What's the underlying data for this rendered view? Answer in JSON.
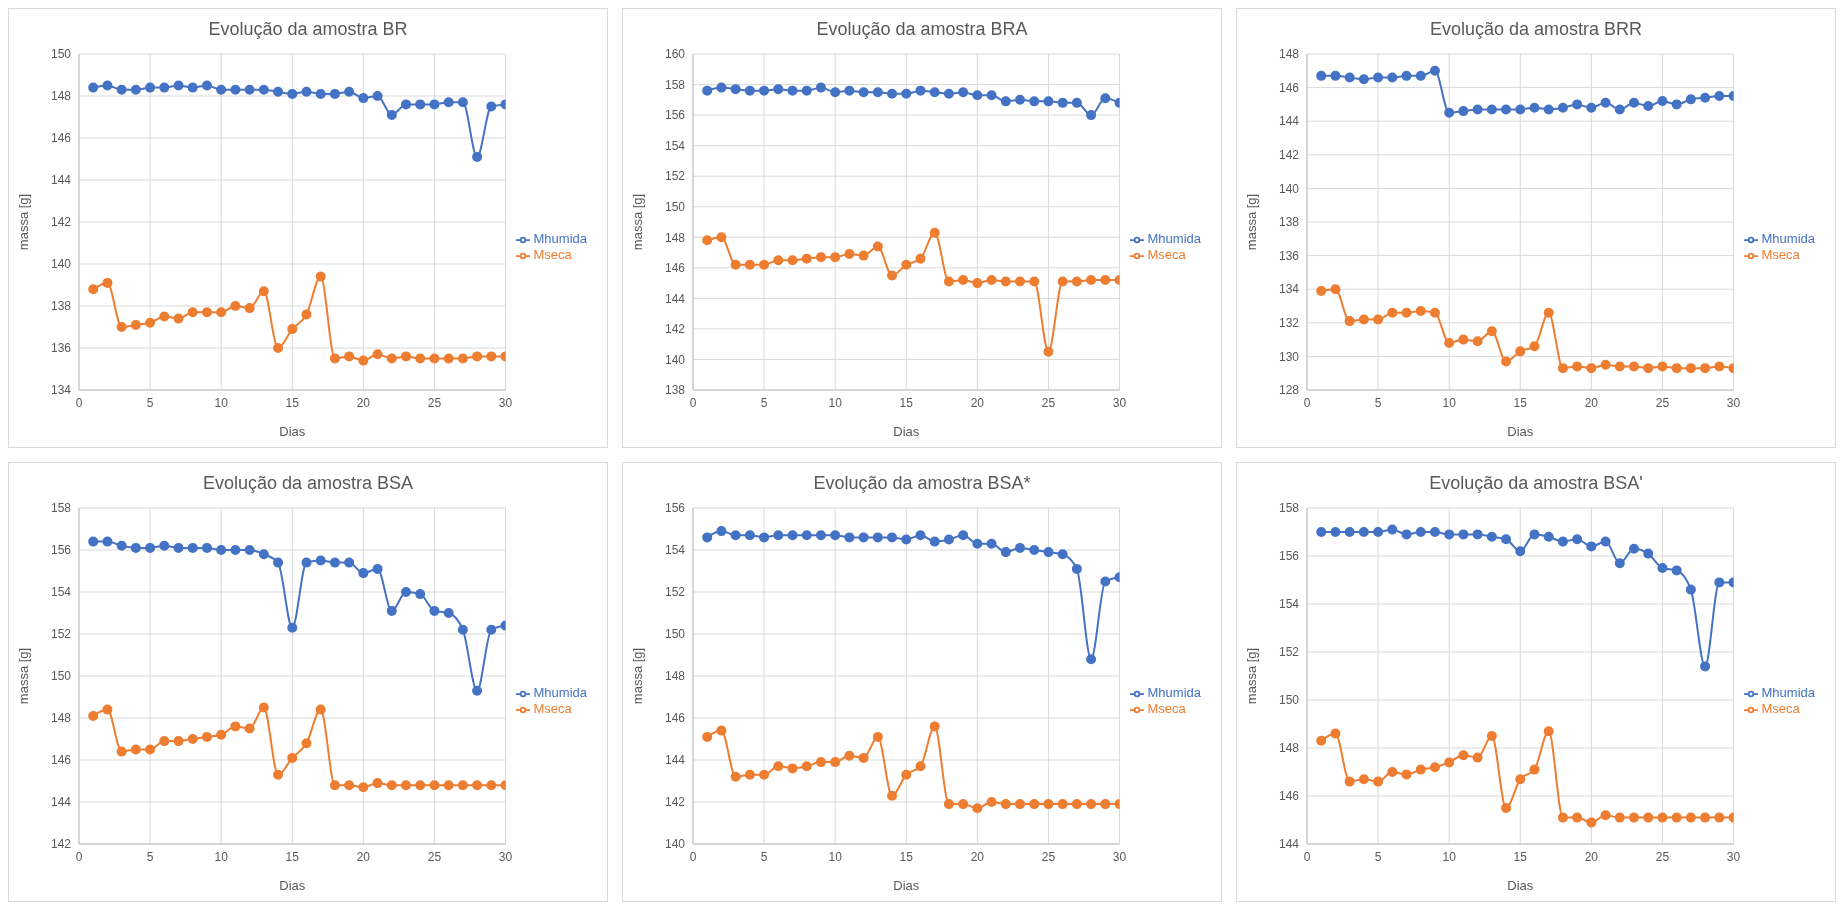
{
  "chart_data": [
    {
      "type": "line",
      "title": "Evolução da amostra BR",
      "xlabel": "Dias",
      "ylabel": "massa [g]",
      "x": [
        1,
        2,
        3,
        4,
        5,
        6,
        7,
        8,
        9,
        10,
        11,
        12,
        13,
        14,
        15,
        16,
        17,
        18,
        19,
        20,
        21,
        22,
        23,
        24,
        25,
        26,
        27,
        28,
        29,
        30
      ],
      "xlim": [
        0,
        30
      ],
      "xticks": [
        0,
        5,
        10,
        15,
        20,
        25,
        30
      ],
      "ylim": [
        134,
        150
      ],
      "yticks": [
        134,
        136,
        138,
        140,
        142,
        144,
        146,
        148,
        150
      ],
      "grid": true,
      "legend": "right",
      "marker": "circle",
      "series": [
        {
          "name": "Mhumida",
          "color": "#4472c4",
          "values": [
            148.4,
            148.5,
            148.3,
            148.3,
            148.4,
            148.4,
            148.5,
            148.4,
            148.5,
            148.3,
            148.3,
            148.3,
            148.3,
            148.2,
            148.1,
            148.2,
            148.1,
            148.1,
            148.2,
            147.9,
            148.0,
            147.1,
            147.6,
            147.6,
            147.6,
            147.7,
            147.7,
            145.1,
            147.5,
            147.6
          ]
        },
        {
          "name": "Mseca",
          "color": "#ed7d31",
          "values": [
            138.8,
            139.1,
            137.0,
            137.1,
            137.2,
            137.5,
            137.4,
            137.7,
            137.7,
            137.7,
            138.0,
            137.9,
            138.7,
            136.0,
            136.9,
            137.6,
            139.4,
            135.5,
            135.6,
            135.4,
            135.7,
            135.5,
            135.6,
            135.5,
            135.5,
            135.5,
            135.5,
            135.6,
            135.6,
            135.6
          ]
        }
      ]
    },
    {
      "type": "line",
      "title": "Evolução da amostra BRA",
      "xlabel": "Dias",
      "ylabel": "massa [g]",
      "x": [
        1,
        2,
        3,
        4,
        5,
        6,
        7,
        8,
        9,
        10,
        11,
        12,
        13,
        14,
        15,
        16,
        17,
        18,
        19,
        20,
        21,
        22,
        23,
        24,
        25,
        26,
        27,
        28,
        29,
        30
      ],
      "xlim": [
        0,
        30
      ],
      "xticks": [
        0,
        5,
        10,
        15,
        20,
        25,
        30
      ],
      "ylim": [
        138,
        160
      ],
      "yticks": [
        138,
        140,
        142,
        144,
        146,
        148,
        150,
        152,
        154,
        156,
        158,
        160
      ],
      "grid": true,
      "legend": "right",
      "marker": "circle",
      "series": [
        {
          "name": "Mhumida",
          "color": "#4472c4",
          "values": [
            157.6,
            157.8,
            157.7,
            157.6,
            157.6,
            157.7,
            157.6,
            157.6,
            157.8,
            157.5,
            157.6,
            157.5,
            157.5,
            157.4,
            157.4,
            157.6,
            157.5,
            157.4,
            157.5,
            157.3,
            157.3,
            156.9,
            157.0,
            156.9,
            156.9,
            156.8,
            156.8,
            156.0,
            157.1,
            156.8
          ]
        },
        {
          "name": "Mseca",
          "color": "#ed7d31",
          "values": [
            147.8,
            148.0,
            146.2,
            146.2,
            146.2,
            146.5,
            146.5,
            146.6,
            146.7,
            146.7,
            146.9,
            146.8,
            147.4,
            145.5,
            146.2,
            146.6,
            148.3,
            145.1,
            145.2,
            145.0,
            145.2,
            145.1,
            145.1,
            145.1,
            140.5,
            145.1,
            145.1,
            145.2,
            145.2,
            145.2
          ]
        }
      ]
    },
    {
      "type": "line",
      "title": "Evolução da amostra BRR",
      "xlabel": "Dias",
      "ylabel": "massa [g]",
      "x": [
        1,
        2,
        3,
        4,
        5,
        6,
        7,
        8,
        9,
        10,
        11,
        12,
        13,
        14,
        15,
        16,
        17,
        18,
        19,
        20,
        21,
        22,
        23,
        24,
        25,
        26,
        27,
        28,
        29,
        30
      ],
      "xlim": [
        0,
        30
      ],
      "xticks": [
        0,
        5,
        10,
        15,
        20,
        25,
        30
      ],
      "ylim": [
        128,
        148
      ],
      "yticks": [
        128,
        130,
        132,
        134,
        136,
        138,
        140,
        142,
        144,
        146,
        148
      ],
      "grid": true,
      "legend": "right",
      "marker": "circle",
      "series": [
        {
          "name": "Mhumida",
          "color": "#4472c4",
          "values": [
            146.7,
            146.7,
            146.6,
            146.5,
            146.6,
            146.6,
            146.7,
            146.7,
            147.0,
            144.5,
            144.6,
            144.7,
            144.7,
            144.7,
            144.7,
            144.8,
            144.7,
            144.8,
            145.0,
            144.8,
            145.1,
            144.7,
            145.1,
            144.9,
            145.2,
            145.0,
            145.3,
            145.4,
            145.5,
            145.5
          ]
        },
        {
          "name": "Mseca",
          "color": "#ed7d31",
          "values": [
            133.9,
            134.0,
            132.1,
            132.2,
            132.2,
            132.6,
            132.6,
            132.7,
            132.6,
            130.8,
            131.0,
            130.9,
            131.5,
            129.7,
            130.3,
            130.6,
            132.6,
            129.3,
            129.4,
            129.3,
            129.5,
            129.4,
            129.4,
            129.3,
            129.4,
            129.3,
            129.3,
            129.3,
            129.4,
            129.3
          ]
        }
      ]
    },
    {
      "type": "line",
      "title": "Evolução da amostra BSA",
      "xlabel": "Dias",
      "ylabel": "massa [g]",
      "x": [
        1,
        2,
        3,
        4,
        5,
        6,
        7,
        8,
        9,
        10,
        11,
        12,
        13,
        14,
        15,
        16,
        17,
        18,
        19,
        20,
        21,
        22,
        23,
        24,
        25,
        26,
        27,
        28,
        29,
        30
      ],
      "xlim": [
        0,
        30
      ],
      "xticks": [
        0,
        5,
        10,
        15,
        20,
        25,
        30
      ],
      "ylim": [
        142,
        158
      ],
      "yticks": [
        142,
        144,
        146,
        148,
        150,
        152,
        154,
        156,
        158
      ],
      "grid": true,
      "legend": "right",
      "marker": "circle",
      "series": [
        {
          "name": "Mhumida",
          "color": "#4472c4",
          "values": [
            156.4,
            156.4,
            156.2,
            156.1,
            156.1,
            156.2,
            156.1,
            156.1,
            156.1,
            156.0,
            156.0,
            156.0,
            155.8,
            155.4,
            152.3,
            155.4,
            155.5,
            155.4,
            155.4,
            154.9,
            155.1,
            153.1,
            154.0,
            153.9,
            153.1,
            153.0,
            152.2,
            149.3,
            152.2,
            152.4
          ]
        },
        {
          "name": "Mseca",
          "color": "#ed7d31",
          "values": [
            148.1,
            148.4,
            146.4,
            146.5,
            146.5,
            146.9,
            146.9,
            147.0,
            147.1,
            147.2,
            147.6,
            147.5,
            148.5,
            145.3,
            146.1,
            146.8,
            148.4,
            144.8,
            144.8,
            144.7,
            144.9,
            144.8,
            144.8,
            144.8,
            144.8,
            144.8,
            144.8,
            144.8,
            144.8,
            144.8
          ]
        }
      ]
    },
    {
      "type": "line",
      "title": "Evolução da amostra BSA*",
      "xlabel": "Dias",
      "ylabel": "massa [g]",
      "x": [
        1,
        2,
        3,
        4,
        5,
        6,
        7,
        8,
        9,
        10,
        11,
        12,
        13,
        14,
        15,
        16,
        17,
        18,
        19,
        20,
        21,
        22,
        23,
        24,
        25,
        26,
        27,
        28,
        29,
        30
      ],
      "xlim": [
        0,
        30
      ],
      "xticks": [
        0,
        5,
        10,
        15,
        20,
        25,
        30
      ],
      "ylim": [
        140,
        156
      ],
      "yticks": [
        140,
        142,
        144,
        146,
        148,
        150,
        152,
        154,
        156
      ],
      "grid": true,
      "legend": "right",
      "marker": "circle",
      "series": [
        {
          "name": "Mhumida",
          "color": "#4472c4",
          "values": [
            154.6,
            154.9,
            154.7,
            154.7,
            154.6,
            154.7,
            154.7,
            154.7,
            154.7,
            154.7,
            154.6,
            154.6,
            154.6,
            154.6,
            154.5,
            154.7,
            154.4,
            154.5,
            154.7,
            154.3,
            154.3,
            153.9,
            154.1,
            154.0,
            153.9,
            153.8,
            153.1,
            148.8,
            152.5,
            152.7
          ]
        },
        {
          "name": "Mseca",
          "color": "#ed7d31",
          "values": [
            145.1,
            145.4,
            143.2,
            143.3,
            143.3,
            143.7,
            143.6,
            143.7,
            143.9,
            143.9,
            144.2,
            144.1,
            145.1,
            142.3,
            143.3,
            143.7,
            145.6,
            141.9,
            141.9,
            141.7,
            142.0,
            141.9,
            141.9,
            141.9,
            141.9,
            141.9,
            141.9,
            141.9,
            141.9,
            141.9
          ]
        }
      ]
    },
    {
      "type": "line",
      "title": "Evolução da amostra BSA'",
      "xlabel": "Dias",
      "ylabel": "massa [g]",
      "x": [
        1,
        2,
        3,
        4,
        5,
        6,
        7,
        8,
        9,
        10,
        11,
        12,
        13,
        14,
        15,
        16,
        17,
        18,
        19,
        20,
        21,
        22,
        23,
        24,
        25,
        26,
        27,
        28,
        29,
        30
      ],
      "xlim": [
        0,
        30
      ],
      "xticks": [
        0,
        5,
        10,
        15,
        20,
        25,
        30
      ],
      "ylim": [
        144,
        158
      ],
      "yticks": [
        144,
        146,
        148,
        150,
        152,
        154,
        156,
        158
      ],
      "grid": true,
      "legend": "right",
      "marker": "circle",
      "series": [
        {
          "name": "Mhumida",
          "color": "#4472c4",
          "values": [
            157.0,
            157.0,
            157.0,
            157.0,
            157.0,
            157.1,
            156.9,
            157.0,
            157.0,
            156.9,
            156.9,
            156.9,
            156.8,
            156.7,
            156.2,
            156.9,
            156.8,
            156.6,
            156.7,
            156.4,
            156.6,
            155.7,
            156.3,
            156.1,
            155.5,
            155.4,
            154.6,
            151.4,
            154.9,
            154.9
          ]
        },
        {
          "name": "Mseca",
          "color": "#ed7d31",
          "values": [
            148.3,
            148.6,
            146.6,
            146.7,
            146.6,
            147.0,
            146.9,
            147.1,
            147.2,
            147.4,
            147.7,
            147.6,
            148.5,
            145.5,
            146.7,
            147.1,
            148.7,
            145.1,
            145.1,
            144.9,
            145.2,
            145.1,
            145.1,
            145.1,
            145.1,
            145.1,
            145.1,
            145.1,
            145.1,
            145.1
          ]
        }
      ]
    }
  ]
}
